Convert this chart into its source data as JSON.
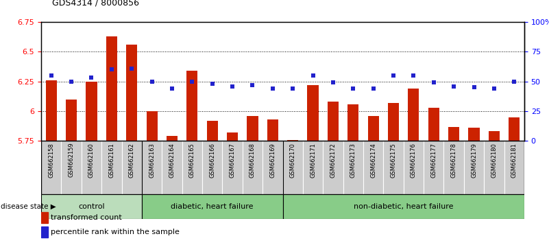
{
  "title": "GDS4314 / 8000856",
  "samples": [
    "GSM662158",
    "GSM662159",
    "GSM662160",
    "GSM662161",
    "GSM662162",
    "GSM662163",
    "GSM662164",
    "GSM662165",
    "GSM662166",
    "GSM662167",
    "GSM662168",
    "GSM662169",
    "GSM662170",
    "GSM662171",
    "GSM662172",
    "GSM662173",
    "GSM662174",
    "GSM662175",
    "GSM662176",
    "GSM662177",
    "GSM662178",
    "GSM662179",
    "GSM662180",
    "GSM662181"
  ],
  "bar_values": [
    6.26,
    6.1,
    6.25,
    6.63,
    6.56,
    6.0,
    5.79,
    6.34,
    5.92,
    5.82,
    5.96,
    5.93,
    5.76,
    6.22,
    6.08,
    6.06,
    5.96,
    6.07,
    6.19,
    6.03,
    5.87,
    5.86,
    5.83,
    5.95
  ],
  "percentile_values": [
    55,
    50,
    53,
    60,
    61,
    50,
    44,
    50,
    48,
    46,
    47,
    44,
    44,
    55,
    49,
    44,
    44,
    55,
    55,
    49,
    46,
    45,
    44,
    50
  ],
  "bar_color": "#cc2200",
  "dot_color": "#2222cc",
  "ylim_left": [
    5.75,
    6.75
  ],
  "ylim_right": [
    0,
    100
  ],
  "yticks_left": [
    5.75,
    6.0,
    6.25,
    6.5,
    6.75
  ],
  "ytick_labels_left": [
    "5.75",
    "6",
    "6.25",
    "6.5",
    "6.75"
  ],
  "yticks_right": [
    0,
    25,
    50,
    75,
    100
  ],
  "ytick_labels_right": [
    "0",
    "25",
    "50",
    "75",
    "100%"
  ],
  "groups": [
    {
      "label": "control",
      "start": 0,
      "end": 5
    },
    {
      "label": "diabetic, heart failure",
      "start": 5,
      "end": 12
    },
    {
      "label": "non-diabetic, heart failure",
      "start": 12,
      "end": 24
    }
  ],
  "group_colors": [
    "#bbddbb",
    "#88cc88",
    "#88cc88"
  ],
  "disease_state_label": "disease state",
  "legend_bar_label": "transformed count",
  "legend_dot_label": "percentile rank within the sample",
  "bar_width": 0.55,
  "tick_label_bg": "#cccccc",
  "title_fontsize": 9,
  "axis_fontsize": 8,
  "tick_fontsize": 7
}
